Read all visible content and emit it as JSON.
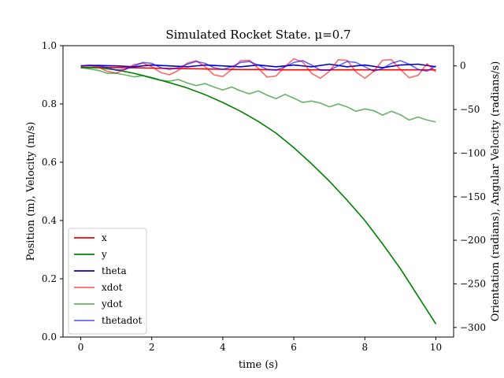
{
  "chart_data": {
    "type": "line",
    "title": "Simulated Rocket State. μ=0.7",
    "xlabel": "time (s)",
    "ylabel_left": "Position (m), Velocity (m/s)",
    "ylabel_right": "Orientation (radians), Angular Velocity (radians/s)",
    "xlim": [
      -0.5,
      10.5
    ],
    "ylim_left": [
      0.0,
      1.0
    ],
    "ylim_right": [
      -311,
      23.2
    ],
    "xticks": [
      0,
      2,
      4,
      6,
      8,
      10
    ],
    "xtick_labels": [
      "0",
      "2",
      "4",
      "6",
      "8",
      "10"
    ],
    "yticks_left": [
      0.0,
      0.2,
      0.4,
      0.6,
      0.8,
      1.0
    ],
    "ytick_labels_left": [
      "0.0",
      "0.2",
      "0.4",
      "0.6",
      "0.8",
      "1.0"
    ],
    "yticks_right": [
      0,
      -50,
      -100,
      -150,
      -200,
      -250,
      -300
    ],
    "ytick_labels_right": [
      "0",
      "−50",
      "−100",
      "−150",
      "−200",
      "−250",
      "−300"
    ],
    "grid": false,
    "legend_position": "lower-left",
    "series": [
      {
        "name": "x",
        "color": "#ff0000",
        "opacity": 1.0,
        "axis": "left",
        "x": [
          0,
          0.5,
          1,
          1.5,
          2,
          2.5,
          3,
          3.5,
          4,
          4.5,
          5,
          5.5,
          6,
          6.5,
          7,
          7.5,
          8,
          8.5,
          9,
          9.5,
          10
        ],
        "y": [
          0.925,
          0.926,
          0.925,
          0.924,
          0.923,
          0.922,
          0.921,
          0.92,
          0.919,
          0.918,
          0.918,
          0.917,
          0.917,
          0.917,
          0.917,
          0.917,
          0.917,
          0.917,
          0.917,
          0.917,
          0.917
        ]
      },
      {
        "name": "y",
        "color": "#008000",
        "opacity": 1.0,
        "axis": "left",
        "x": [
          0,
          0.5,
          1,
          1.5,
          2,
          2.5,
          3,
          3.5,
          4,
          4.5,
          5,
          5.5,
          6,
          6.5,
          7,
          7.5,
          8,
          8.5,
          9,
          9.5,
          10
        ],
        "y": [
          0.925,
          0.924,
          0.917,
          0.905,
          0.89,
          0.873,
          0.855,
          0.832,
          0.805,
          0.775,
          0.74,
          0.7,
          0.65,
          0.595,
          0.535,
          0.47,
          0.4,
          0.32,
          0.235,
          0.14,
          0.045
        ]
      },
      {
        "name": "theta",
        "color": "#0000cc",
        "opacity": 1.0,
        "axis": "right",
        "x": [
          0,
          0.5,
          1,
          1.5,
          2,
          2.5,
          3,
          3.5,
          4,
          4.5,
          5,
          5.5,
          6,
          6.5,
          7,
          7.5,
          8,
          8.5,
          9,
          9.5,
          10
        ],
        "y": [
          0,
          0.5,
          0,
          -1,
          1,
          0,
          -1,
          1,
          0,
          -1,
          1,
          -1,
          1,
          -1,
          2,
          -1,
          1,
          -2,
          1,
          2,
          -1
        ]
      },
      {
        "name": "xdot",
        "color": "#ff0000",
        "opacity": 0.6,
        "axis": "left",
        "x": [
          0,
          0.25,
          0.5,
          0.75,
          1,
          1.25,
          1.5,
          1.75,
          2,
          2.25,
          2.5,
          2.75,
          3,
          3.25,
          3.5,
          3.75,
          4,
          4.25,
          4.5,
          4.75,
          5,
          5.25,
          5.5,
          5.75,
          6,
          6.25,
          6.5,
          6.75,
          7,
          7.25,
          7.5,
          7.75,
          8,
          8.25,
          8.5,
          8.75,
          9,
          9.25,
          9.5,
          9.75,
          10
        ],
        "y": [
          0.928,
          0.932,
          0.926,
          0.912,
          0.906,
          0.918,
          0.935,
          0.94,
          0.928,
          0.908,
          0.9,
          0.915,
          0.94,
          0.948,
          0.928,
          0.9,
          0.894,
          0.918,
          0.948,
          0.95,
          0.922,
          0.892,
          0.896,
          0.928,
          0.955,
          0.944,
          0.905,
          0.888,
          0.912,
          0.952,
          0.95,
          0.91,
          0.888,
          0.912,
          0.95,
          0.952,
          0.918,
          0.89,
          0.898,
          0.938,
          0.91
        ]
      },
      {
        "name": "ydot",
        "color": "#008000",
        "opacity": 0.6,
        "axis": "left",
        "x": [
          0,
          0.25,
          0.5,
          0.75,
          1,
          1.25,
          1.5,
          1.75,
          2,
          2.25,
          2.5,
          2.75,
          3,
          3.25,
          3.5,
          3.75,
          4,
          4.25,
          4.5,
          4.75,
          5,
          5.25,
          5.5,
          5.75,
          6,
          6.25,
          6.5,
          6.75,
          7,
          7.25,
          7.5,
          7.75,
          8,
          8.25,
          8.5,
          8.75,
          9,
          9.25,
          9.5,
          9.75,
          10
        ],
        "y": [
          0.925,
          0.92,
          0.915,
          0.905,
          0.905,
          0.9,
          0.893,
          0.897,
          0.888,
          0.881,
          0.878,
          0.884,
          0.872,
          0.863,
          0.87,
          0.858,
          0.848,
          0.858,
          0.845,
          0.835,
          0.845,
          0.83,
          0.818,
          0.833,
          0.82,
          0.805,
          0.81,
          0.803,
          0.79,
          0.8,
          0.79,
          0.775,
          0.783,
          0.777,
          0.762,
          0.775,
          0.763,
          0.745,
          0.755,
          0.745,
          0.738
        ]
      },
      {
        "name": "thetadot",
        "color": "#0000ff",
        "opacity": 0.6,
        "axis": "right",
        "x": [
          0,
          0.25,
          0.5,
          0.75,
          1,
          1.25,
          1.5,
          1.75,
          2,
          2.25,
          2.5,
          2.75,
          3,
          3.25,
          3.5,
          3.75,
          4,
          4.25,
          4.5,
          4.75,
          5,
          5.25,
          5.5,
          5.75,
          6,
          6.25,
          6.5,
          6.75,
          7,
          7.25,
          7.5,
          7.75,
          8,
          8.25,
          8.5,
          8.75,
          9,
          9.25,
          9.5,
          9.75,
          10
        ],
        "y": [
          0,
          1,
          0,
          -2,
          -5,
          -4,
          0,
          4,
          3,
          -2,
          -4,
          -2,
          2,
          5,
          3,
          -2,
          -4,
          -1,
          4,
          5,
          1,
          -4,
          -5,
          -1,
          4,
          6,
          1,
          -5,
          -5,
          0,
          5,
          4,
          -1,
          -6,
          -3,
          3,
          6,
          2,
          -4,
          -6,
          0
        ]
      }
    ]
  }
}
